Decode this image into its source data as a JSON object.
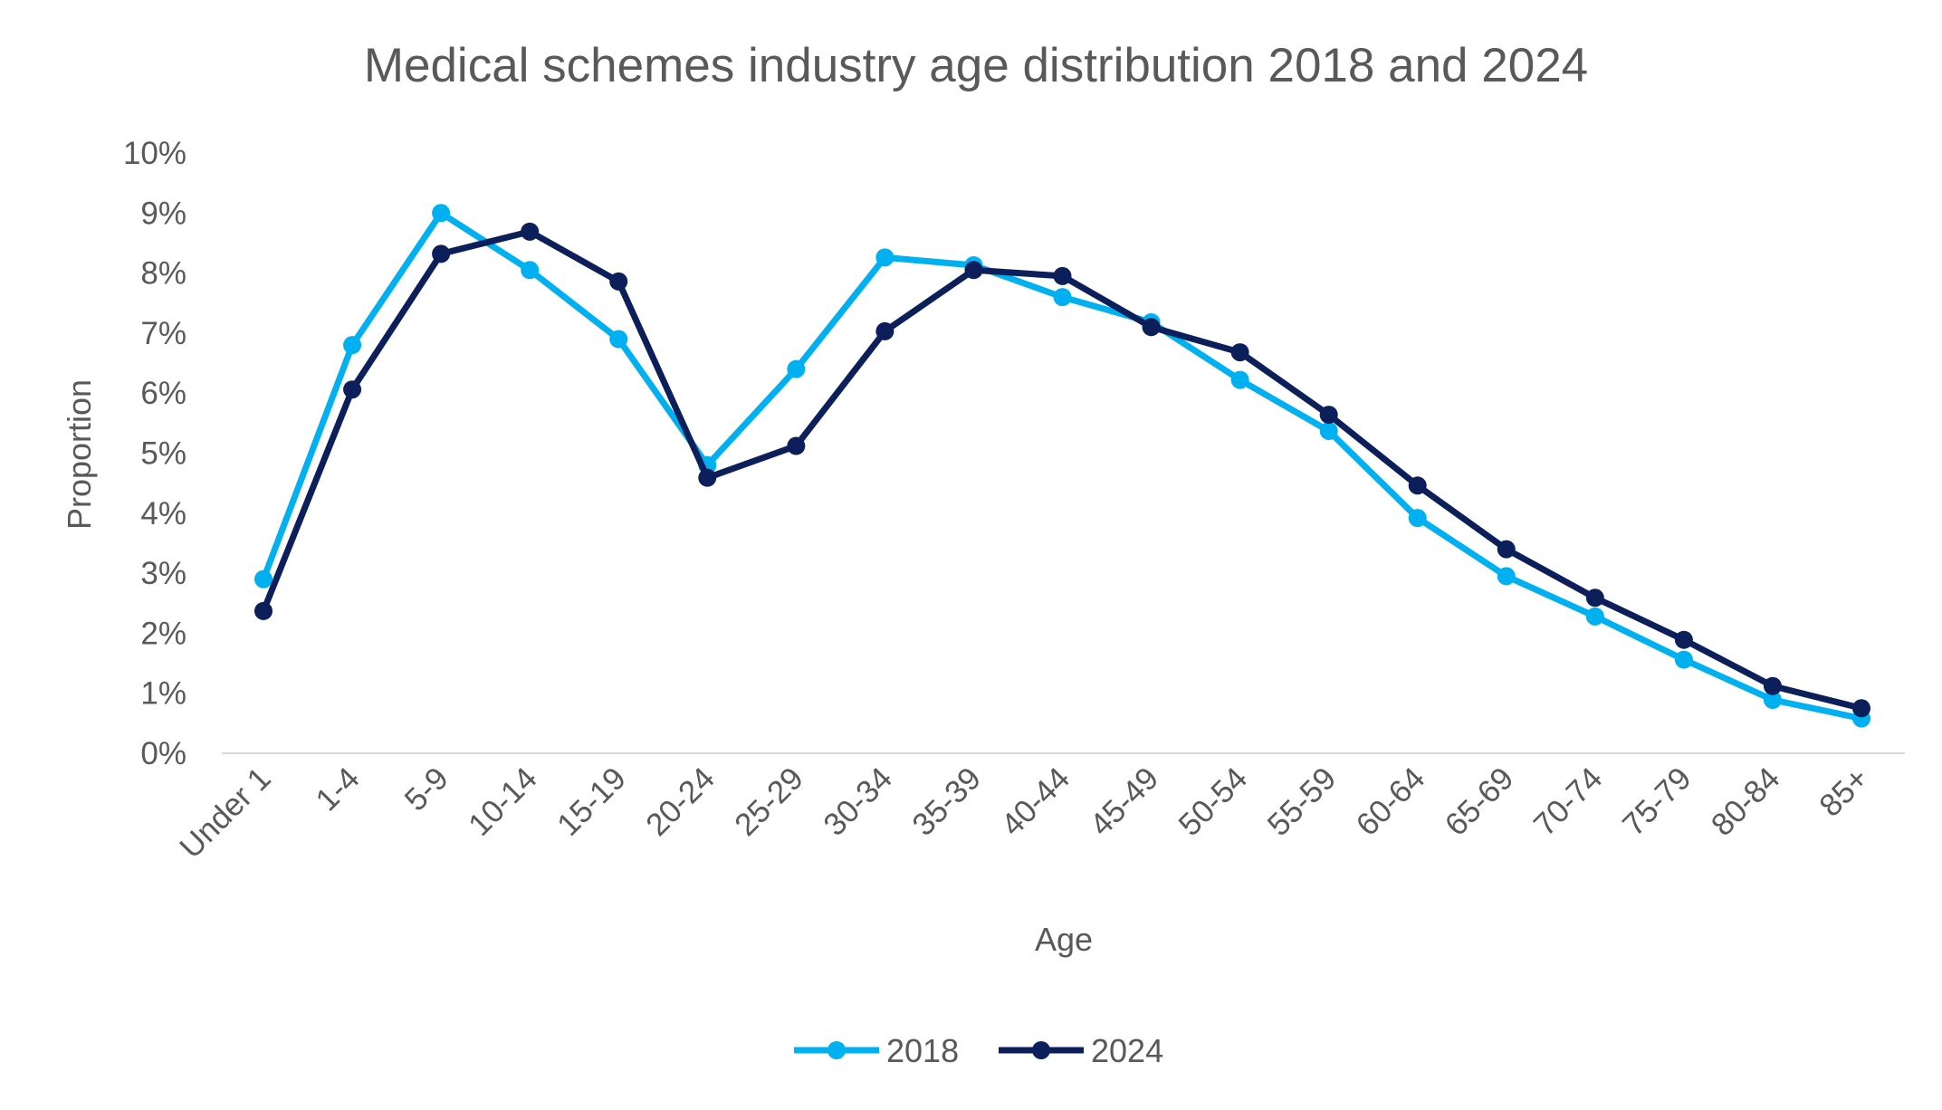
{
  "chart_data": {
    "type": "line",
    "title": "Medical schemes industry age distribution 2018 and 2024",
    "xlabel": "Age",
    "ylabel": "Proportion",
    "ylim": [
      0,
      10
    ],
    "y_ticks": [
      "0%",
      "1%",
      "2%",
      "3%",
      "4%",
      "5%",
      "6%",
      "7%",
      "8%",
      "9%",
      "10%"
    ],
    "y_unit": "%",
    "grid": false,
    "legend_position": "bottom",
    "categories": [
      "Under 1",
      "1-4",
      "5-9",
      "10-14",
      "15-19",
      "20-24",
      "25-29",
      "30-34",
      "35-39",
      "40-44",
      "45-49",
      "50-54",
      "55-59",
      "60-64",
      "65-69",
      "70-74",
      "75-79",
      "80-84",
      "85+"
    ],
    "series": [
      {
        "name": "2018",
        "color": "#00B0F0",
        "values": [
          2.9,
          6.8,
          9.0,
          8.05,
          6.9,
          4.8,
          6.4,
          8.26,
          8.13,
          7.6,
          7.18,
          6.22,
          5.37,
          3.92,
          2.95,
          2.28,
          1.56,
          0.89,
          0.58
        ]
      },
      {
        "name": "2024",
        "color": "#0C1F5B",
        "values": [
          2.37,
          6.06,
          8.32,
          8.69,
          7.86,
          4.59,
          5.12,
          7.03,
          8.05,
          7.95,
          7.1,
          6.68,
          5.64,
          4.46,
          3.4,
          2.59,
          1.89,
          1.12,
          0.75
        ]
      }
    ]
  }
}
